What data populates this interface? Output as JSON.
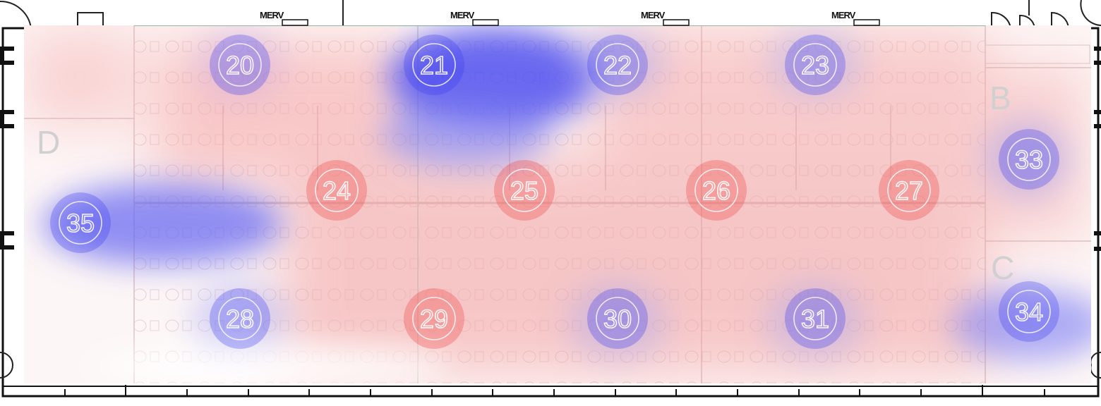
{
  "heatmap": {
    "warm_color": "#ef4444",
    "cool_color": "#3b3bf0",
    "frame_color": "#111111"
  },
  "zones": [
    {
      "id": "zone-b",
      "label": "B"
    },
    {
      "id": "zone-c",
      "label": "C"
    },
    {
      "id": "zone-d",
      "label": "D"
    }
  ],
  "sensors": [
    {
      "label": "20",
      "reading": "cool"
    },
    {
      "label": "21",
      "reading": "cool"
    },
    {
      "label": "22",
      "reading": "cool"
    },
    {
      "label": "23",
      "reading": "cool"
    },
    {
      "label": "24",
      "reading": "warm"
    },
    {
      "label": "25",
      "reading": "warm"
    },
    {
      "label": "26",
      "reading": "warm"
    },
    {
      "label": "27",
      "reading": "warm"
    },
    {
      "label": "28",
      "reading": "cool"
    },
    {
      "label": "29",
      "reading": "warm"
    },
    {
      "label": "30",
      "reading": "cool"
    },
    {
      "label": "31",
      "reading": "cool"
    },
    {
      "label": "33",
      "reading": "cool"
    },
    {
      "label": "34",
      "reading": "cool"
    },
    {
      "label": "35",
      "reading": "cool"
    }
  ],
  "equipment_labels": [
    "MERV",
    "MERV",
    "MERV",
    "MERV"
  ]
}
